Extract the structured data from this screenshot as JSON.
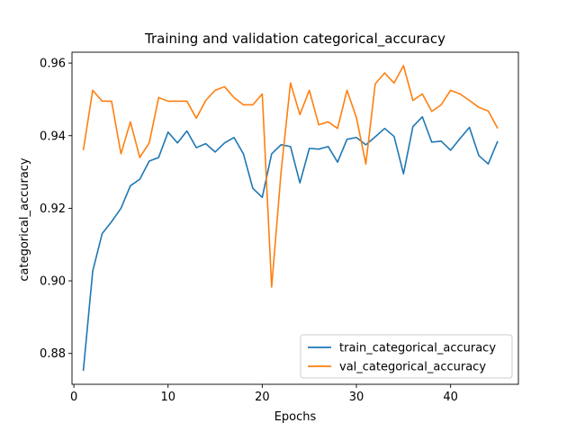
{
  "chart_data": {
    "type": "line",
    "title": "Training and validation categorical_accuracy",
    "xlabel": "Epochs",
    "ylabel": "categorical_accuracy",
    "xlim": [
      -0.2,
      47.2
    ],
    "ylim": [
      0.8715,
      0.963
    ],
    "xticks": [
      0,
      10,
      20,
      30,
      40
    ],
    "xtick_labels": [
      "0",
      "10",
      "20",
      "30",
      "40"
    ],
    "yticks": [
      0.88,
      0.9,
      0.92,
      0.94,
      0.96
    ],
    "ytick_labels": [
      "0.88",
      "0.90",
      "0.92",
      "0.94",
      "0.96"
    ],
    "grid": false,
    "legend_position": "lower-right",
    "x": [
      1,
      2,
      3,
      4,
      5,
      6,
      7,
      8,
      9,
      10,
      11,
      12,
      13,
      14,
      15,
      16,
      17,
      18,
      19,
      20,
      21,
      22,
      23,
      24,
      25,
      26,
      27,
      28,
      29,
      30,
      31,
      32,
      33,
      34,
      35,
      36,
      37,
      38,
      39,
      40,
      41,
      42,
      43,
      44,
      45
    ],
    "series": [
      {
        "name": "train_categorical_accuracy",
        "color": "#1f77b4",
        "values": [
          0.8752,
          0.9027,
          0.913,
          0.9163,
          0.92,
          0.9262,
          0.928,
          0.933,
          0.934,
          0.941,
          0.938,
          0.9413,
          0.9367,
          0.9378,
          0.9355,
          0.938,
          0.9395,
          0.935,
          0.9255,
          0.923,
          0.935,
          0.9375,
          0.937,
          0.927,
          0.9365,
          0.9363,
          0.937,
          0.9327,
          0.939,
          0.9395,
          0.9375,
          0.9397,
          0.942,
          0.9398,
          0.9295,
          0.9425,
          0.9452,
          0.9382,
          0.9385,
          0.936,
          0.9392,
          0.9423,
          0.9345,
          0.9322,
          0.9385
        ]
      },
      {
        "name": "val_categorical_accuracy",
        "color": "#ff7f0e",
        "values": [
          0.936,
          0.9525,
          0.9495,
          0.9495,
          0.935,
          0.9438,
          0.934,
          0.938,
          0.9505,
          0.9495,
          0.9495,
          0.9495,
          0.9448,
          0.9497,
          0.9525,
          0.9535,
          0.9505,
          0.9485,
          0.9485,
          0.9515,
          0.8983,
          0.93,
          0.9545,
          0.9458,
          0.9525,
          0.943,
          0.9438,
          0.942,
          0.9525,
          0.945,
          0.9322,
          0.9543,
          0.9573,
          0.9545,
          0.9593,
          0.9497,
          0.9515,
          0.9467,
          0.9485,
          0.9525,
          0.9515,
          0.9497,
          0.9478,
          0.9468,
          0.942
        ]
      }
    ]
  }
}
